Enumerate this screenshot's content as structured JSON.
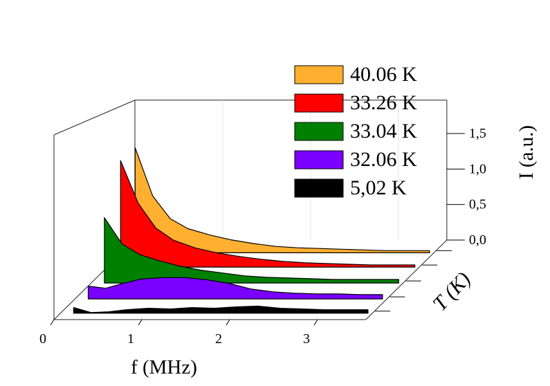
{
  "chart_data": {
    "type": "area",
    "title": "",
    "xlabel": "f (MHz)",
    "ylabel": "T (K)",
    "zlabel": "I (a.u.)",
    "xlim": [
      0,
      3.5
    ],
    "zlim": [
      0,
      1.5
    ],
    "x_ticks": [
      "0",
      "1",
      "2",
      "3"
    ],
    "z_ticks": [
      "0,0",
      "0,5",
      "1,0",
      "1,5"
    ],
    "legend_position": "top-right",
    "x": [
      0.15,
      0.35,
      0.55,
      0.75,
      1.0,
      1.25,
      1.5,
      1.75,
      2.0,
      2.25,
      2.5,
      2.75,
      3.0,
      3.25,
      3.5
    ],
    "series": [
      {
        "name": "5,02 K",
        "color": "#000000",
        "values": [
          0.08,
          0.01,
          0.02,
          0.05,
          0.07,
          0.06,
          0.08,
          0.07,
          0.09,
          0.1,
          0.07,
          0.06,
          0.05,
          0.05,
          0.05
        ]
      },
      {
        "name": "32.06 K",
        "color": "#7a00ff",
        "values": [
          0.18,
          0.15,
          0.22,
          0.28,
          0.3,
          0.3,
          0.27,
          0.22,
          0.14,
          0.1,
          0.08,
          0.07,
          0.07,
          0.06,
          0.06
        ]
      },
      {
        "name": "33.04 K",
        "color": "#008000",
        "values": [
          0.92,
          0.55,
          0.4,
          0.32,
          0.24,
          0.18,
          0.14,
          0.1,
          0.08,
          0.07,
          0.06,
          0.05,
          0.05,
          0.05,
          0.05
        ]
      },
      {
        "name": "33.26 K",
        "color": "#ff0000",
        "values": [
          1.5,
          0.9,
          0.55,
          0.38,
          0.27,
          0.2,
          0.15,
          0.11,
          0.08,
          0.06,
          0.05,
          0.04,
          0.03,
          0.03,
          0.03
        ]
      },
      {
        "name": "40.06 K",
        "color": "#ffb030",
        "values": [
          1.48,
          0.8,
          0.48,
          0.34,
          0.25,
          0.18,
          0.13,
          0.09,
          0.07,
          0.06,
          0.05,
          0.04,
          0.03,
          0.03,
          0.03
        ]
      }
    ]
  }
}
